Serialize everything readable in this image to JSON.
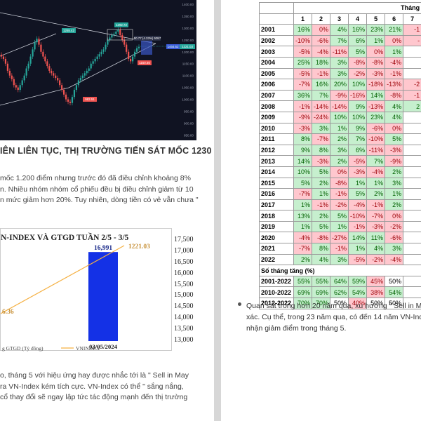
{
  "candlestick_chart": {
    "price_labels": [
      "1400.00",
      "1350.00",
      "1300.00",
      "1250.00",
      "1200.00",
      "1150.00",
      "1100.00",
      "1050.00",
      "1000.00",
      "950.00",
      "900.00",
      "850.00",
      "800.00"
    ],
    "callouts": {
      "high_left": "1255.42",
      "high_right": "1292.72",
      "low": "983.51",
      "recent_low": "1160.46",
      "info": "50.77 (4.33%) 5057",
      "current_price": "1221.03",
      "left_tag": "1464.62"
    },
    "colors": {
      "up": "#26a69a",
      "down": "#ef5350",
      "background": "#101322"
    }
  },
  "article": {
    "heading": "IÊN LIÊN TỤC, THỊ TRƯỜNG TIẾN SÁT MỐC 1230",
    "para1_lines": [
      "mốc 1.200 điểm nhưng trước đó đã điều chỉnh khoảng 8%",
      "n. Nhiều nhóm nhóm cổ phiếu đều bị điều chỉnh giảm từ 10",
      "n mức giảm hơn 20%. Tuy nhiên, dòng tiền có vẻ vẫn chưa \""
    ],
    "para2_lines": [
      "o, tháng 5 với hiệu ứng hay được nhắc tới là \" Sell in May",
      "ra VN-Index kém tích cực. VN-Index có thể \" sắng nắng,",
      "cổ thay đổi sẽ ngay lập tức tác động mạnh đến thị trường"
    ]
  },
  "volume_chart": {
    "title": "N-INDEX VÀ GTGD TUẦN 2/5 - 3/5",
    "bar_label": "16,991",
    "line_end_label": "1221.03",
    "line_start_label": "6.36",
    "x_label": "03/05/2024",
    "legend_bar": "g GTGD (Tỷ đồng)",
    "legend_line": "VNINDEX",
    "right_axis": [
      "17,500",
      "17,000",
      "16,500",
      "16,000",
      "15,500",
      "15,000",
      "14,500",
      "14,000",
      "13,500",
      "13,000"
    ],
    "colors": {
      "bar": "#1431e6",
      "line": "#f5b042"
    }
  },
  "seasonal_table": {
    "header_top": "Tháng",
    "months": [
      "1",
      "2",
      "3",
      "4",
      "5",
      "6",
      "7"
    ],
    "rows": [
      {
        "year": "2001",
        "values": [
          "16%",
          "0%",
          "4%",
          "16%",
          "23%",
          "21%",
          "-1"
        ]
      },
      {
        "year": "2002",
        "values": [
          "-10%",
          "-6%",
          "7%",
          "6%",
          "1%",
          "0%",
          "-"
        ]
      },
      {
        "year": "2003",
        "values": [
          "-5%",
          "-4%",
          "-11%",
          "5%",
          "0%",
          "1%",
          ""
        ]
      },
      {
        "year": "2004",
        "values": [
          "25%",
          "18%",
          "3%",
          "-8%",
          "-8%",
          "-4%",
          ""
        ]
      },
      {
        "year": "2005",
        "values": [
          "-5%",
          "-1%",
          "3%",
          "-2%",
          "-3%",
          "-1%",
          ""
        ]
      },
      {
        "year": "2006",
        "values": [
          "-7%",
          "16%",
          "20%",
          "10%",
          "-18%",
          "-13%",
          "-2"
        ]
      },
      {
        "year": "2007",
        "values": [
          "36%",
          "7%",
          "-9%",
          "-16%",
          "14%",
          "-8%",
          "-1"
        ]
      },
      {
        "year": "2008",
        "values": [
          "-1%",
          "-14%",
          "-14%",
          "9%",
          "-13%",
          "4%",
          "2"
        ]
      },
      {
        "year": "2009",
        "values": [
          "-9%",
          "-24%",
          "10%",
          "10%",
          "23%",
          "4%",
          ""
        ]
      },
      {
        "year": "2010",
        "values": [
          "-3%",
          "3%",
          "1%",
          "9%",
          "-6%",
          "0%",
          ""
        ]
      },
      {
        "year": "2011",
        "values": [
          "8%",
          "-7%",
          "2%",
          "7%",
          "-10%",
          "5%",
          ""
        ]
      },
      {
        "year": "2012",
        "values": [
          "9%",
          "8%",
          "3%",
          "6%",
          "-11%",
          "-3%",
          ""
        ]
      },
      {
        "year": "2013",
        "values": [
          "14%",
          "-3%",
          "2%",
          "-5%",
          "7%",
          "-9%",
          ""
        ]
      },
      {
        "year": "2014",
        "values": [
          "10%",
          "5%",
          "0%",
          "-3%",
          "-4%",
          "2%",
          ""
        ]
      },
      {
        "year": "2015",
        "values": [
          "5%",
          "2%",
          "-8%",
          "1%",
          "1%",
          "3%",
          ""
        ]
      },
      {
        "year": "2016",
        "values": [
          "-7%",
          "1%",
          "-1%",
          "5%",
          "2%",
          "1%",
          ""
        ]
      },
      {
        "year": "2017",
        "values": [
          "1%",
          "-1%",
          "-2%",
          "-4%",
          "-1%",
          "2%",
          ""
        ]
      },
      {
        "year": "2018",
        "values": [
          "13%",
          "2%",
          "5%",
          "-10%",
          "-7%",
          "0%",
          ""
        ]
      },
      {
        "year": "2019",
        "values": [
          "1%",
          "5%",
          "1%",
          "-1%",
          "-3%",
          "-2%",
          ""
        ]
      },
      {
        "year": "2020",
        "values": [
          "-4%",
          "-8%",
          "-27%",
          "14%",
          "11%",
          "-6%",
          ""
        ]
      },
      {
        "year": "2021",
        "values": [
          "-7%",
          "8%",
          "-1%",
          "1%",
          "4%",
          "3%",
          ""
        ]
      },
      {
        "year": "2022",
        "values": [
          "2%",
          "4%",
          "3%",
          "-5%",
          "-2%",
          "-4%",
          ""
        ]
      }
    ],
    "section_label": "Số tháng tăng (%)",
    "summary": [
      {
        "period": "2001-2022",
        "values": [
          "55%",
          "55%",
          "64%",
          "59%",
          "45%",
          "50%",
          ""
        ]
      },
      {
        "period": "2010-2022",
        "values": [
          "69%",
          "69%",
          "62%",
          "54%",
          "38%",
          "54%",
          ""
        ]
      },
      {
        "period": "2012-2022",
        "values": [
          "70%",
          "70%",
          "50%",
          "40%",
          "50%",
          "50%",
          ""
        ]
      }
    ]
  },
  "right_text_lines": [
    "Quan sát trong hơn 20 năm qua, xu hướng \" Sell in Ma",
    "xác. Cụ thể, trong 23 năm qua, có đến 14 năm VN-Inde",
    "nhận giảm điểm trong tháng 5."
  ]
}
